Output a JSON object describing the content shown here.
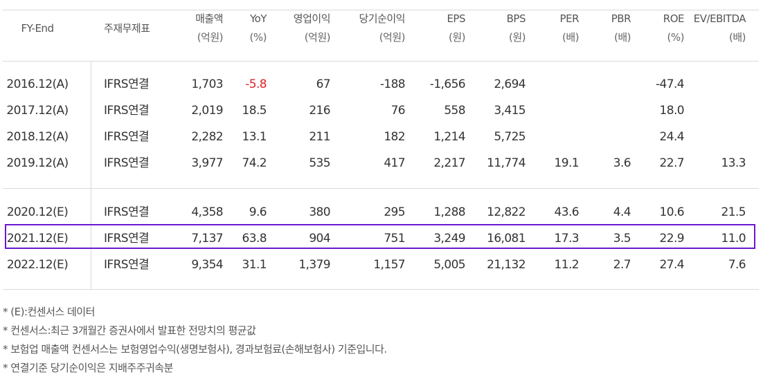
{
  "headers": [
    {
      "line1": "FY-End",
      "line2": ""
    },
    {
      "line1": "주재무제표",
      "line2": ""
    },
    {
      "line1": "매출액",
      "line2": "(억원)"
    },
    {
      "line1": "YoY",
      "line2": "(%)"
    },
    {
      "line1": "영업이익",
      "line2": "(억원)"
    },
    {
      "line1": "당기순이익",
      "line2": "(억원)"
    },
    {
      "line1": "EPS",
      "line2": "(원)"
    },
    {
      "line1": "BPS",
      "line2": "(원)"
    },
    {
      "line1": "PER",
      "line2": "(배)"
    },
    {
      "line1": "PBR",
      "line2": "(배)"
    },
    {
      "line1": "ROE",
      "line2": "(%)"
    },
    {
      "line1": "EV/EBITDA",
      "line2": "(배)"
    }
  ],
  "rows": [
    {
      "fy": "2016.12(A)",
      "basis": "IFRS연결",
      "sales": "1,703",
      "yoy": "-5.8",
      "op": "67",
      "net": "-188",
      "eps": "-1,656",
      "bps": "2,694",
      "per": "",
      "pbr": "",
      "roe": "-47.4",
      "ev": ""
    },
    {
      "fy": "2017.12(A)",
      "basis": "IFRS연결",
      "sales": "2,019",
      "yoy": "18.5",
      "op": "216",
      "net": "76",
      "eps": "558",
      "bps": "3,415",
      "per": "",
      "pbr": "",
      "roe": "18.0",
      "ev": ""
    },
    {
      "fy": "2018.12(A)",
      "basis": "IFRS연결",
      "sales": "2,282",
      "yoy": "13.1",
      "op": "211",
      "net": "182",
      "eps": "1,214",
      "bps": "5,725",
      "per": "",
      "pbr": "",
      "roe": "24.4",
      "ev": ""
    },
    {
      "fy": "2019.12(A)",
      "basis": "IFRS연결",
      "sales": "3,977",
      "yoy": "74.2",
      "op": "535",
      "net": "417",
      "eps": "2,217",
      "bps": "11,774",
      "per": "19.1",
      "pbr": "3.6",
      "roe": "22.7",
      "ev": "13.3"
    },
    {
      "fy": "2020.12(E)",
      "basis": "IFRS연결",
      "sales": "4,358",
      "yoy": "9.6",
      "op": "380",
      "net": "295",
      "eps": "1,288",
      "bps": "12,822",
      "per": "43.6",
      "pbr": "4.4",
      "roe": "10.6",
      "ev": "21.5"
    },
    {
      "fy": "2021.12(E)",
      "basis": "IFRS연결",
      "sales": "7,137",
      "yoy": "63.8",
      "op": "904",
      "net": "751",
      "eps": "3,249",
      "bps": "16,081",
      "per": "17.3",
      "pbr": "3.5",
      "roe": "22.9",
      "ev": "11.0"
    },
    {
      "fy": "2022.12(E)",
      "basis": "IFRS연결",
      "sales": "9,354",
      "yoy": "31.1",
      "op": "1,379",
      "net": "1,157",
      "eps": "5,005",
      "bps": "21,132",
      "per": "11.2",
      "pbr": "2.7",
      "roe": "27.4",
      "ev": "7.6"
    }
  ],
  "negative_color": "#e0222a",
  "highlight_color": "#6a16d2",
  "notes": [
    "* (E):컨센서스 데이터",
    "* 컨센서스:최근 3개월간 증권사에서 발표한 전망치의 평균값",
    "* 보험업 매출액 컨센서스는 보험영업수익(생명보험사), 경과보험료(손해보험사) 기준입니다.",
    "* 연결기준 당기순이익은 지배주주귀속분"
  ]
}
